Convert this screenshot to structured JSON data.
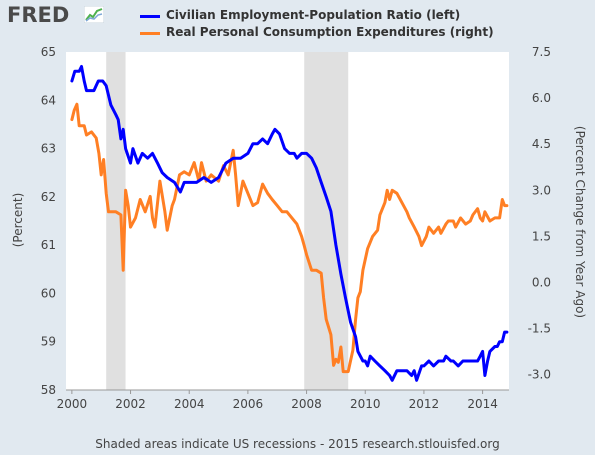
{
  "header": {
    "logo_text": "FRED",
    "logo_icon": "line-chart-icon"
  },
  "footer": {
    "text": "Shaded areas indicate US recessions - 2015 research.stlouisfed.org"
  },
  "colors": {
    "background": "#e1e9f0",
    "plot_background": "#ffffff",
    "recession": "#e0e0e0",
    "series_left": "#0000ff",
    "series_right": "#ff7f24"
  },
  "chart_data": {
    "type": "line",
    "title": "",
    "xlabel": "",
    "ylabel_left": "(Percent)",
    "ylabel_right": "(Percent Change from Year Ago)",
    "xlim": [
      1999.8,
      2014.9
    ],
    "ylim_left": [
      58,
      65
    ],
    "ylim_right": [
      -3.5,
      7.5
    ],
    "xticks": [
      "2000",
      "2002",
      "2004",
      "2006",
      "2008",
      "2010",
      "2012",
      "2014"
    ],
    "yticks_left": [
      "58",
      "59",
      "60",
      "61",
      "62",
      "63",
      "64",
      "65"
    ],
    "yticks_right": [
      "-3.0",
      "-1.5",
      "0.0",
      "1.5",
      "3.0",
      "4.5",
      "6.0",
      "7.5"
    ],
    "grid": false,
    "legend_position": "top",
    "recessions": [
      [
        2001.17,
        2001.83
      ],
      [
        2007.92,
        2009.42
      ]
    ],
    "series": [
      {
        "name": "Civilian Employment-Population Ratio (left)",
        "axis": "left",
        "points": [
          [
            2000.0,
            64.4
          ],
          [
            2000.1,
            64.6
          ],
          [
            2000.25,
            64.6
          ],
          [
            2000.33,
            64.7
          ],
          [
            2000.42,
            64.4
          ],
          [
            2000.5,
            64.2
          ],
          [
            2000.75,
            64.2
          ],
          [
            2000.9,
            64.4
          ],
          [
            2001.05,
            64.4
          ],
          [
            2001.17,
            64.3
          ],
          [
            2001.33,
            63.9
          ],
          [
            2001.5,
            63.7
          ],
          [
            2001.58,
            63.6
          ],
          [
            2001.67,
            63.2
          ],
          [
            2001.75,
            63.4
          ],
          [
            2001.83,
            63.0
          ],
          [
            2002.0,
            62.7
          ],
          [
            2002.08,
            63.0
          ],
          [
            2002.25,
            62.7
          ],
          [
            2002.4,
            62.9
          ],
          [
            2002.58,
            62.8
          ],
          [
            2002.75,
            62.9
          ],
          [
            2002.92,
            62.7
          ],
          [
            2003.08,
            62.5
          ],
          [
            2003.25,
            62.4
          ],
          [
            2003.5,
            62.3
          ],
          [
            2003.7,
            62.1
          ],
          [
            2003.83,
            62.3
          ],
          [
            2004.0,
            62.3
          ],
          [
            2004.25,
            62.3
          ],
          [
            2004.5,
            62.4
          ],
          [
            2004.75,
            62.3
          ],
          [
            2005.0,
            62.4
          ],
          [
            2005.25,
            62.7
          ],
          [
            2005.5,
            62.8
          ],
          [
            2005.75,
            62.8
          ],
          [
            2006.0,
            62.9
          ],
          [
            2006.17,
            63.1
          ],
          [
            2006.33,
            63.1
          ],
          [
            2006.5,
            63.2
          ],
          [
            2006.67,
            63.1
          ],
          [
            2006.83,
            63.3
          ],
          [
            2006.92,
            63.4
          ],
          [
            2007.08,
            63.3
          ],
          [
            2007.25,
            63.0
          ],
          [
            2007.42,
            62.9
          ],
          [
            2007.58,
            62.9
          ],
          [
            2007.67,
            62.8
          ],
          [
            2007.83,
            62.9
          ],
          [
            2008.0,
            62.9
          ],
          [
            2008.17,
            62.8
          ],
          [
            2008.33,
            62.6
          ],
          [
            2008.5,
            62.3
          ],
          [
            2008.67,
            62.0
          ],
          [
            2008.83,
            61.7
          ],
          [
            2009.0,
            61.0
          ],
          [
            2009.17,
            60.4
          ],
          [
            2009.33,
            59.9
          ],
          [
            2009.5,
            59.4
          ],
          [
            2009.67,
            59.1
          ],
          [
            2009.75,
            58.8
          ],
          [
            2009.92,
            58.6
          ],
          [
            2010.0,
            58.6
          ],
          [
            2010.08,
            58.5
          ],
          [
            2010.17,
            58.7
          ],
          [
            2010.33,
            58.6
          ],
          [
            2010.5,
            58.5
          ],
          [
            2010.67,
            58.4
          ],
          [
            2010.83,
            58.3
          ],
          [
            2010.92,
            58.2
          ],
          [
            2011.08,
            58.4
          ],
          [
            2011.25,
            58.4
          ],
          [
            2011.42,
            58.4
          ],
          [
            2011.58,
            58.3
          ],
          [
            2011.67,
            58.4
          ],
          [
            2011.75,
            58.2
          ],
          [
            2011.92,
            58.5
          ],
          [
            2012.0,
            58.5
          ],
          [
            2012.17,
            58.6
          ],
          [
            2012.33,
            58.5
          ],
          [
            2012.5,
            58.6
          ],
          [
            2012.67,
            58.6
          ],
          [
            2012.75,
            58.7
          ],
          [
            2012.92,
            58.6
          ],
          [
            2013.0,
            58.6
          ],
          [
            2013.17,
            58.5
          ],
          [
            2013.33,
            58.6
          ],
          [
            2013.5,
            58.6
          ],
          [
            2013.67,
            58.6
          ],
          [
            2013.83,
            58.6
          ],
          [
            2013.92,
            58.7
          ],
          [
            2014.0,
            58.8
          ],
          [
            2014.08,
            58.3
          ],
          [
            2014.17,
            58.6
          ],
          [
            2014.25,
            58.8
          ],
          [
            2014.42,
            58.9
          ],
          [
            2014.5,
            58.9
          ],
          [
            2014.58,
            59.0
          ],
          [
            2014.67,
            59.0
          ],
          [
            2014.75,
            59.2
          ],
          [
            2014.83,
            59.2
          ]
        ]
      },
      {
        "name": "Real Personal Consumption Expenditures (right)",
        "axis": "right",
        "points": [
          [
            2000.0,
            5.3
          ],
          [
            2000.08,
            5.6
          ],
          [
            2000.17,
            5.8
          ],
          [
            2000.25,
            5.1
          ],
          [
            2000.42,
            5.1
          ],
          [
            2000.5,
            4.8
          ],
          [
            2000.67,
            4.9
          ],
          [
            2000.83,
            4.7
          ],
          [
            2000.92,
            4.2
          ],
          [
            2001.0,
            3.5
          ],
          [
            2001.08,
            4.0
          ],
          [
            2001.17,
            2.9
          ],
          [
            2001.25,
            2.3
          ],
          [
            2001.42,
            2.3
          ],
          [
            2001.5,
            2.3
          ],
          [
            2001.67,
            2.2
          ],
          [
            2001.75,
            0.4
          ],
          [
            2001.83,
            3.0
          ],
          [
            2001.92,
            2.5
          ],
          [
            2002.0,
            1.8
          ],
          [
            2002.17,
            2.1
          ],
          [
            2002.33,
            2.7
          ],
          [
            2002.5,
            2.3
          ],
          [
            2002.67,
            2.8
          ],
          [
            2002.75,
            2.1
          ],
          [
            2002.83,
            1.8
          ],
          [
            2003.0,
            3.3
          ],
          [
            2003.17,
            2.3
          ],
          [
            2003.25,
            1.7
          ],
          [
            2003.42,
            2.5
          ],
          [
            2003.5,
            2.7
          ],
          [
            2003.67,
            3.5
          ],
          [
            2003.83,
            3.6
          ],
          [
            2004.0,
            3.5
          ],
          [
            2004.17,
            3.9
          ],
          [
            2004.33,
            3.3
          ],
          [
            2004.42,
            3.9
          ],
          [
            2004.58,
            3.3
          ],
          [
            2004.75,
            3.5
          ],
          [
            2005.0,
            3.3
          ],
          [
            2005.17,
            3.8
          ],
          [
            2005.33,
            3.5
          ],
          [
            2005.5,
            4.3
          ],
          [
            2005.58,
            3.5
          ],
          [
            2005.67,
            2.5
          ],
          [
            2005.83,
            3.3
          ],
          [
            2006.0,
            2.9
          ],
          [
            2006.17,
            2.5
          ],
          [
            2006.33,
            2.6
          ],
          [
            2006.5,
            3.2
          ],
          [
            2006.67,
            2.9
          ],
          [
            2006.83,
            2.7
          ],
          [
            2007.0,
            2.5
          ],
          [
            2007.17,
            2.3
          ],
          [
            2007.33,
            2.3
          ],
          [
            2007.5,
            2.1
          ],
          [
            2007.67,
            1.9
          ],
          [
            2007.83,
            1.5
          ],
          [
            2007.92,
            1.2
          ],
          [
            2008.0,
            0.9
          ],
          [
            2008.17,
            0.4
          ],
          [
            2008.33,
            0.4
          ],
          [
            2008.5,
            0.3
          ],
          [
            2008.58,
            -0.5
          ],
          [
            2008.67,
            -1.2
          ],
          [
            2008.83,
            -1.7
          ],
          [
            2008.92,
            -2.7
          ],
          [
            2009.0,
            -2.5
          ],
          [
            2009.08,
            -2.6
          ],
          [
            2009.17,
            -2.1
          ],
          [
            2009.25,
            -2.9
          ],
          [
            2009.42,
            -2.9
          ],
          [
            2009.58,
            -2.2
          ],
          [
            2009.67,
            -1.2
          ],
          [
            2009.75,
            -0.5
          ],
          [
            2009.83,
            -0.3
          ],
          [
            2009.92,
            0.4
          ],
          [
            2010.08,
            1.1
          ],
          [
            2010.25,
            1.5
          ],
          [
            2010.42,
            1.7
          ],
          [
            2010.5,
            2.2
          ],
          [
            2010.67,
            2.6
          ],
          [
            2010.75,
            3.0
          ],
          [
            2010.83,
            2.7
          ],
          [
            2010.92,
            3.0
          ],
          [
            2011.08,
            2.9
          ],
          [
            2011.25,
            2.6
          ],
          [
            2011.42,
            2.3
          ],
          [
            2011.5,
            2.1
          ],
          [
            2011.67,
            1.8
          ],
          [
            2011.83,
            1.5
          ],
          [
            2011.92,
            1.2
          ],
          [
            2012.08,
            1.5
          ],
          [
            2012.17,
            1.8
          ],
          [
            2012.33,
            1.6
          ],
          [
            2012.5,
            1.8
          ],
          [
            2012.58,
            1.6
          ],
          [
            2012.75,
            1.9
          ],
          [
            2012.83,
            2.0
          ],
          [
            2013.0,
            2.0
          ],
          [
            2013.08,
            1.8
          ],
          [
            2013.25,
            2.1
          ],
          [
            2013.42,
            1.9
          ],
          [
            2013.58,
            2.0
          ],
          [
            2013.67,
            2.2
          ],
          [
            2013.83,
            2.4
          ],
          [
            2013.92,
            2.1
          ],
          [
            2014.0,
            2.0
          ],
          [
            2014.08,
            2.3
          ],
          [
            2014.25,
            2.0
          ],
          [
            2014.42,
            2.1
          ],
          [
            2014.58,
            2.1
          ],
          [
            2014.67,
            2.7
          ],
          [
            2014.75,
            2.5
          ],
          [
            2014.83,
            2.5
          ]
        ]
      }
    ]
  }
}
